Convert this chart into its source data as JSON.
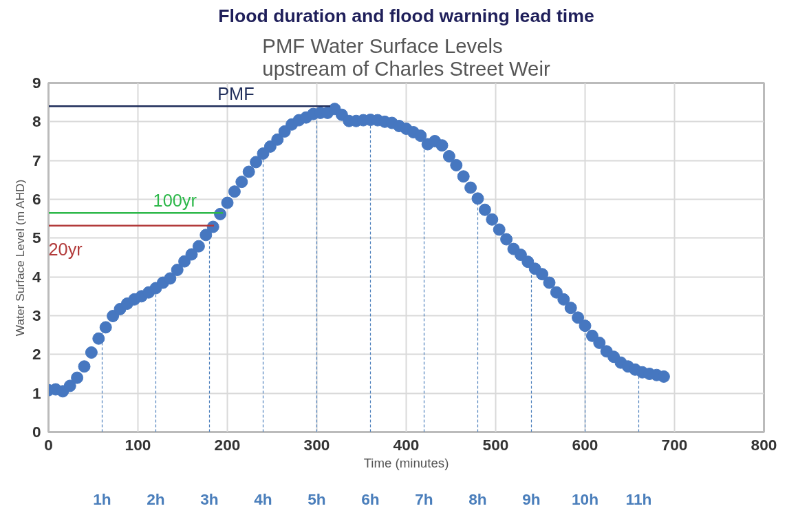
{
  "chart_data": {
    "type": "scatter",
    "title": "Flood duration and flood warning lead time",
    "subtitle": "PMF  Water Surface Levels\nupstream of Charles Street Weir",
    "xlabel": "Time (minutes)",
    "ylabel": "Water Surface Level (m AHD)",
    "xlim": [
      0,
      800
    ],
    "xticks": [
      0,
      100,
      200,
      300,
      400,
      500,
      600,
      700,
      800
    ],
    "ylim": [
      0,
      9
    ],
    "yticks": [
      0,
      1,
      2,
      3,
      4,
      5,
      6,
      7,
      8,
      9
    ],
    "ref_lines": [
      {
        "axis": "x",
        "value": 60,
        "label": "1h",
        "color": "#4a7ebb",
        "line_style": "dashed"
      },
      {
        "axis": "x",
        "value": 120,
        "label": "2h",
        "color": "#4a7ebb",
        "line_style": "dashed"
      },
      {
        "axis": "x",
        "value": 180,
        "label": "3h",
        "color": "#4a7ebb",
        "line_style": "dashed"
      },
      {
        "axis": "x",
        "value": 240,
        "label": "4h",
        "color": "#4a7ebb",
        "line_style": "dashed"
      },
      {
        "axis": "x",
        "value": 300,
        "label": "5h",
        "color": "#4a7ebb",
        "line_style": "dashed"
      },
      {
        "axis": "x",
        "value": 360,
        "label": "6h",
        "color": "#4a7ebb",
        "line_style": "dashed"
      },
      {
        "axis": "x",
        "value": 420,
        "label": "7h",
        "color": "#4a7ebb",
        "line_style": "dashed"
      },
      {
        "axis": "x",
        "value": 480,
        "label": "8h",
        "color": "#4a7ebb",
        "line_style": "dashed"
      },
      {
        "axis": "x",
        "value": 540,
        "label": "9h",
        "color": "#4a7ebb",
        "line_style": "dashed"
      },
      {
        "axis": "x",
        "value": 600,
        "label": "10h",
        "color": "#4a7ebb",
        "line_style": "dashed"
      },
      {
        "axis": "x",
        "value": 660,
        "label": "11h",
        "color": "#4a7ebb",
        "line_style": "dashed"
      }
    ],
    "grid": true,
    "marker": "circle",
    "series": [
      {
        "color": "#4677c0",
        "x": [
          0,
          8,
          16,
          24,
          32,
          40,
          48,
          56,
          64,
          72,
          80,
          88,
          96,
          104,
          112,
          120,
          128,
          136,
          144,
          152,
          160,
          168,
          176,
          184,
          192,
          200,
          208,
          216,
          224,
          232,
          240,
          248,
          256,
          264,
          272,
          280,
          288,
          296,
          304,
          312,
          320,
          328,
          336,
          344,
          352,
          360,
          368,
          376,
          384,
          392,
          400,
          408,
          416,
          424,
          432,
          440,
          448,
          456,
          464,
          472,
          480,
          488,
          496,
          504,
          512,
          520,
          528,
          536,
          544,
          552,
          560,
          568,
          576,
          584,
          592,
          600,
          608,
          616,
          624,
          632,
          640,
          648,
          656,
          664,
          672,
          680,
          688
        ],
        "values": [
          1.08,
          1.1,
          1.05,
          1.19,
          1.4,
          1.69,
          2.05,
          2.41,
          2.7,
          2.99,
          3.17,
          3.31,
          3.42,
          3.5,
          3.6,
          3.71,
          3.85,
          3.96,
          4.18,
          4.4,
          4.58,
          4.79,
          5.08,
          5.29,
          5.62,
          5.91,
          6.2,
          6.45,
          6.71,
          6.96,
          7.18,
          7.36,
          7.54,
          7.75,
          7.93,
          8.04,
          8.11,
          8.2,
          8.23,
          8.23,
          8.33,
          8.18,
          8.02,
          8.02,
          8.04,
          8.05,
          8.04,
          8.0,
          7.97,
          7.89,
          7.82,
          7.73,
          7.64,
          7.42,
          7.5,
          7.39,
          7.11,
          6.88,
          6.59,
          6.3,
          6.02,
          5.73,
          5.48,
          5.22,
          4.97,
          4.72,
          4.57,
          4.39,
          4.21,
          4.07,
          3.85,
          3.6,
          3.42,
          3.2,
          2.95,
          2.74,
          2.48,
          2.3,
          2.08,
          1.94,
          1.79,
          1.69,
          1.61,
          1.54,
          1.5,
          1.47,
          1.43
        ]
      },
      {
        "type": "line",
        "name": "PMF",
        "color": "#1f2d5a",
        "x": [
          0,
          315
        ],
        "values": [
          8.4,
          8.4
        ],
        "marker": "none"
      },
      {
        "type": "line",
        "name": "100yr",
        "color": "#2db84a",
        "x": [
          0,
          195
        ],
        "values": [
          5.65,
          5.65
        ],
        "marker": "none"
      },
      {
        "type": "line",
        "name": "20yr",
        "color": "#b23a3a",
        "x": [
          0,
          185
        ],
        "values": [
          5.32,
          5.32
        ],
        "marker": "none"
      }
    ]
  }
}
